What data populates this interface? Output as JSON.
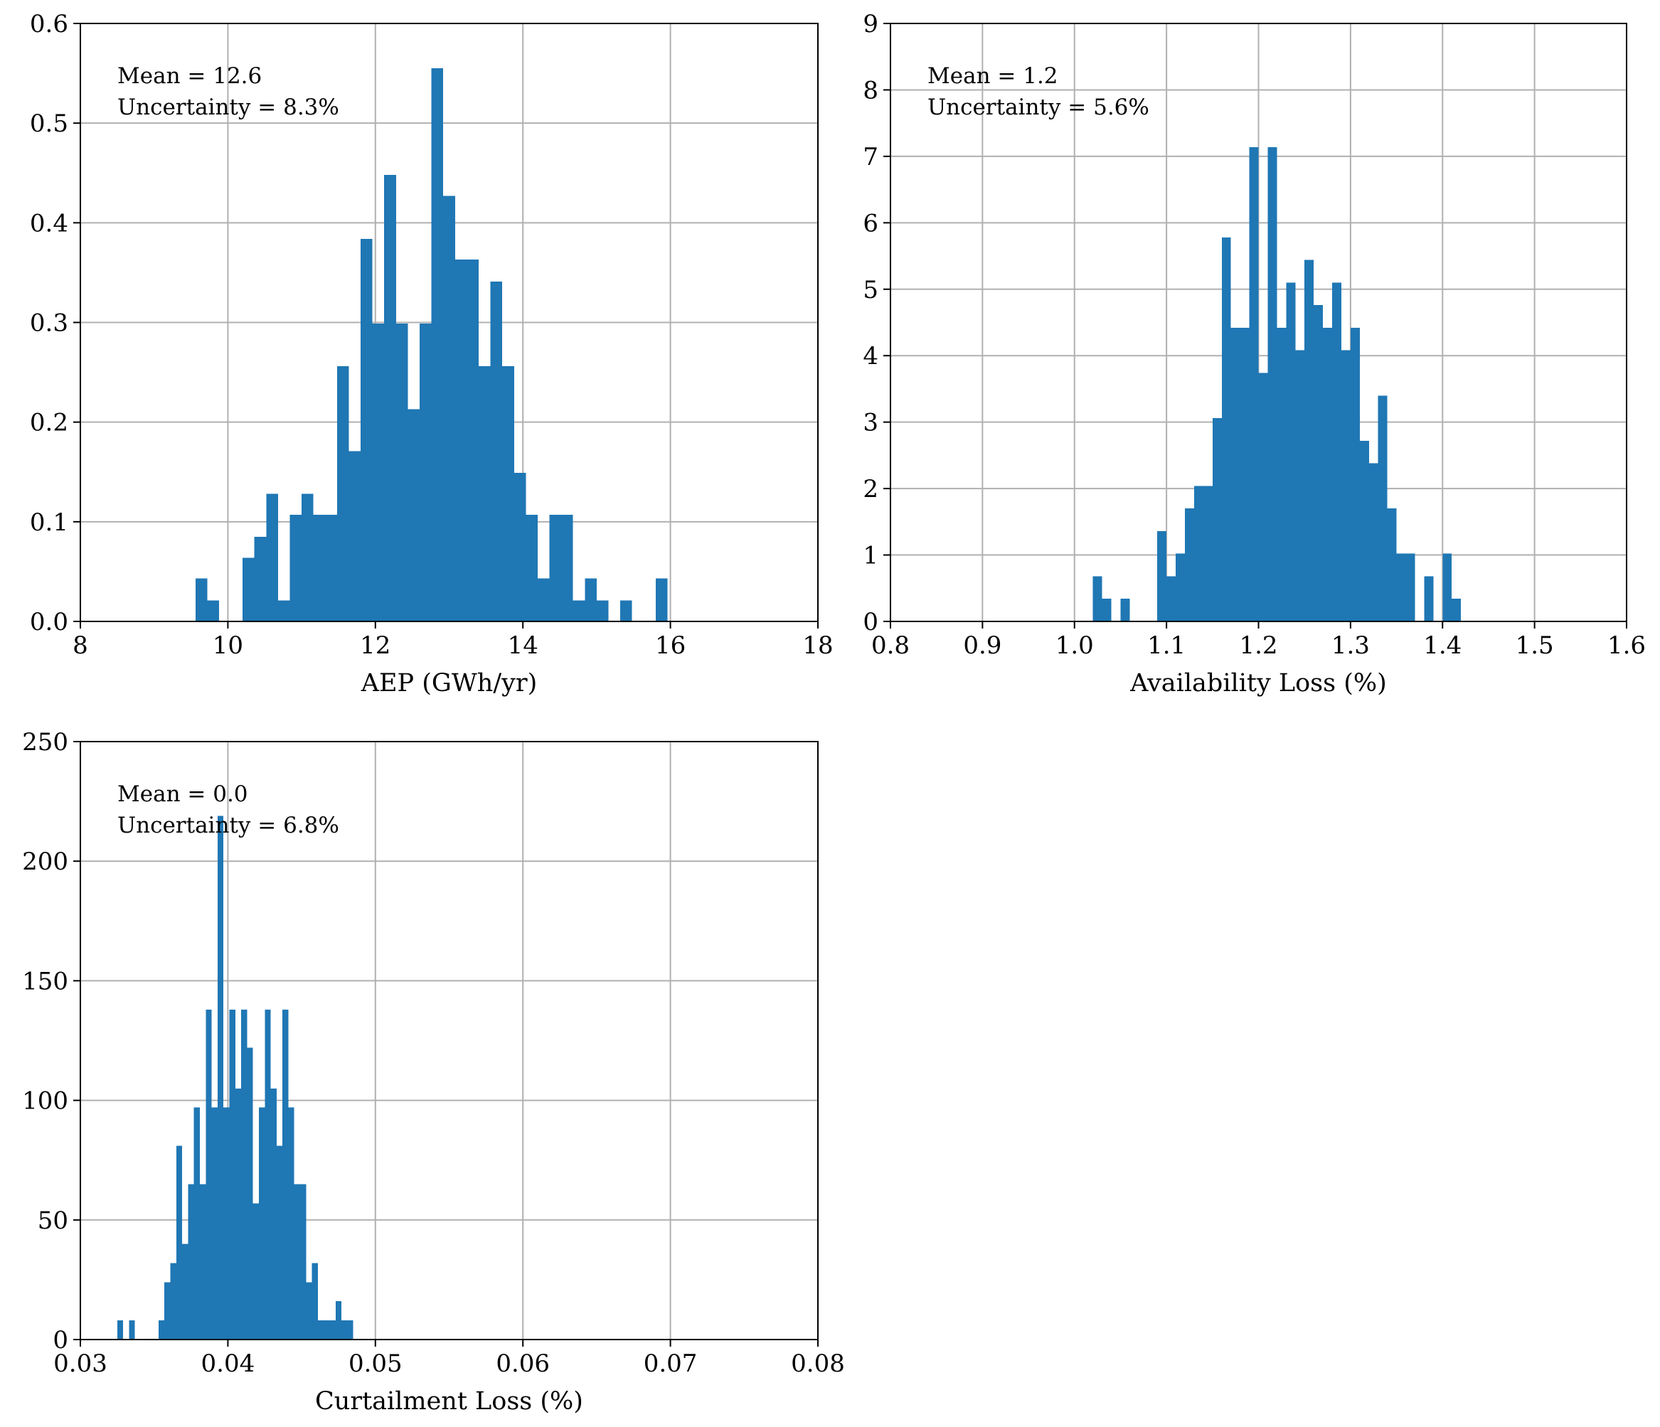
{
  "colors": {
    "bar": "#1f77b4",
    "grid": "#b0b0b0",
    "axis": "#000000"
  },
  "chart_data": [
    {
      "type": "histogram",
      "xlabel": "AEP (GWh/yr)",
      "xlim": [
        8,
        18
      ],
      "ylim": [
        0,
        0.6
      ],
      "xticks": [
        "8",
        "10",
        "12",
        "14",
        "16",
        "18"
      ],
      "yticks": [
        "0.0",
        "0.1",
        "0.2",
        "0.3",
        "0.4",
        "0.5",
        "0.6"
      ],
      "grid": true,
      "annotation": [
        "Mean = 12.6",
        "Uncertainty = 8.3%"
      ],
      "bin_width": 0.16,
      "bins": [
        {
          "x": 9.64,
          "y": 0.043
        },
        {
          "x": 9.8,
          "y": 0.021
        },
        {
          "x": 10.28,
          "y": 0.064
        },
        {
          "x": 10.44,
          "y": 0.085
        },
        {
          "x": 10.6,
          "y": 0.128
        },
        {
          "x": 10.76,
          "y": 0.021
        },
        {
          "x": 10.92,
          "y": 0.107
        },
        {
          "x": 11.08,
          "y": 0.128
        },
        {
          "x": 11.24,
          "y": 0.107
        },
        {
          "x": 11.4,
          "y": 0.107
        },
        {
          "x": 11.56,
          "y": 0.256
        },
        {
          "x": 11.72,
          "y": 0.171
        },
        {
          "x": 11.88,
          "y": 0.384
        },
        {
          "x": 12.04,
          "y": 0.299
        },
        {
          "x": 12.2,
          "y": 0.448
        },
        {
          "x": 12.36,
          "y": 0.299
        },
        {
          "x": 12.52,
          "y": 0.213
        },
        {
          "x": 12.68,
          "y": 0.299
        },
        {
          "x": 12.84,
          "y": 0.555
        },
        {
          "x": 13.0,
          "y": 0.427
        },
        {
          "x": 13.16,
          "y": 0.363
        },
        {
          "x": 13.32,
          "y": 0.363
        },
        {
          "x": 13.48,
          "y": 0.256
        },
        {
          "x": 13.64,
          "y": 0.341
        },
        {
          "x": 13.8,
          "y": 0.256
        },
        {
          "x": 13.96,
          "y": 0.149
        },
        {
          "x": 14.12,
          "y": 0.107
        },
        {
          "x": 14.28,
          "y": 0.043
        },
        {
          "x": 14.44,
          "y": 0.107
        },
        {
          "x": 14.6,
          "y": 0.107
        },
        {
          "x": 14.76,
          "y": 0.021
        },
        {
          "x": 14.92,
          "y": 0.043
        },
        {
          "x": 15.08,
          "y": 0.021
        },
        {
          "x": 15.4,
          "y": 0.021
        },
        {
          "x": 15.88,
          "y": 0.043
        }
      ]
    },
    {
      "type": "histogram",
      "xlabel": "Availability Loss (%)",
      "xlim": [
        0.8,
        1.6
      ],
      "ylim": [
        0,
        9
      ],
      "xticks": [
        "0.8",
        "0.9",
        "1.0",
        "1.1",
        "1.2",
        "1.3",
        "1.4",
        "1.5",
        "1.6"
      ],
      "yticks": [
        "0",
        "1",
        "2",
        "3",
        "4",
        "5",
        "6",
        "7",
        "8",
        "9"
      ],
      "grid": true,
      "annotation": [
        "Mean = 1.2",
        "Uncertainty = 5.6%"
      ],
      "bin_width": 0.01,
      "bins": [
        {
          "x": 1.025,
          "y": 0.68
        },
        {
          "x": 1.035,
          "y": 0.34
        },
        {
          "x": 1.055,
          "y": 0.34
        },
        {
          "x": 1.095,
          "y": 1.36
        },
        {
          "x": 1.105,
          "y": 0.68
        },
        {
          "x": 1.115,
          "y": 1.02
        },
        {
          "x": 1.125,
          "y": 1.7
        },
        {
          "x": 1.135,
          "y": 2.04
        },
        {
          "x": 1.145,
          "y": 2.04
        },
        {
          "x": 1.155,
          "y": 3.06
        },
        {
          "x": 1.165,
          "y": 5.78
        },
        {
          "x": 1.175,
          "y": 4.42
        },
        {
          "x": 1.185,
          "y": 4.42
        },
        {
          "x": 1.195,
          "y": 7.14
        },
        {
          "x": 1.205,
          "y": 3.74
        },
        {
          "x": 1.215,
          "y": 7.14
        },
        {
          "x": 1.225,
          "y": 4.42
        },
        {
          "x": 1.235,
          "y": 5.1
        },
        {
          "x": 1.245,
          "y": 4.08
        },
        {
          "x": 1.255,
          "y": 5.44
        },
        {
          "x": 1.265,
          "y": 4.76
        },
        {
          "x": 1.275,
          "y": 4.42
        },
        {
          "x": 1.285,
          "y": 5.1
        },
        {
          "x": 1.295,
          "y": 4.08
        },
        {
          "x": 1.305,
          "y": 4.42
        },
        {
          "x": 1.315,
          "y": 2.72
        },
        {
          "x": 1.325,
          "y": 2.38
        },
        {
          "x": 1.335,
          "y": 3.4
        },
        {
          "x": 1.345,
          "y": 1.7
        },
        {
          "x": 1.355,
          "y": 1.02
        },
        {
          "x": 1.365,
          "y": 1.02
        },
        {
          "x": 1.385,
          "y": 0.68
        },
        {
          "x": 1.405,
          "y": 1.02
        },
        {
          "x": 1.415,
          "y": 0.34
        }
      ]
    },
    {
      "type": "histogram",
      "xlabel": "Curtailment Loss (%)",
      "xlim": [
        0.03,
        0.08
      ],
      "ylim": [
        0,
        250
      ],
      "xticks": [
        "0.03",
        "0.04",
        "0.05",
        "0.06",
        "0.07",
        "0.08"
      ],
      "yticks": [
        "0",
        "50",
        "100",
        "150",
        "200",
        "250"
      ],
      "grid": true,
      "annotation": [
        "Mean = 0.0",
        "Uncertainty = 6.8%"
      ],
      "bin_width": 0.0004,
      "bins": [
        {
          "x": 0.0327,
          "y": 8
        },
        {
          "x": 0.0335,
          "y": 8
        },
        {
          "x": 0.0355,
          "y": 8
        },
        {
          "x": 0.0359,
          "y": 24
        },
        {
          "x": 0.0363,
          "y": 32
        },
        {
          "x": 0.0367,
          "y": 81
        },
        {
          "x": 0.0371,
          "y": 40
        },
        {
          "x": 0.0375,
          "y": 65
        },
        {
          "x": 0.0379,
          "y": 97
        },
        {
          "x": 0.0383,
          "y": 65
        },
        {
          "x": 0.0387,
          "y": 138
        },
        {
          "x": 0.0391,
          "y": 97
        },
        {
          "x": 0.0395,
          "y": 219
        },
        {
          "x": 0.0399,
          "y": 97
        },
        {
          "x": 0.0403,
          "y": 138
        },
        {
          "x": 0.0407,
          "y": 105
        },
        {
          "x": 0.0411,
          "y": 138
        },
        {
          "x": 0.0415,
          "y": 122
        },
        {
          "x": 0.0419,
          "y": 57
        },
        {
          "x": 0.0423,
          "y": 97
        },
        {
          "x": 0.0427,
          "y": 138
        },
        {
          "x": 0.0431,
          "y": 105
        },
        {
          "x": 0.0435,
          "y": 81
        },
        {
          "x": 0.0439,
          "y": 138
        },
        {
          "x": 0.0443,
          "y": 97
        },
        {
          "x": 0.0447,
          "y": 65
        },
        {
          "x": 0.0451,
          "y": 65
        },
        {
          "x": 0.0455,
          "y": 24
        },
        {
          "x": 0.0459,
          "y": 32
        },
        {
          "x": 0.0463,
          "y": 8
        },
        {
          "x": 0.0467,
          "y": 8
        },
        {
          "x": 0.0471,
          "y": 8
        },
        {
          "x": 0.0475,
          "y": 16
        },
        {
          "x": 0.0479,
          "y": 8
        },
        {
          "x": 0.0483,
          "y": 8
        }
      ]
    }
  ]
}
